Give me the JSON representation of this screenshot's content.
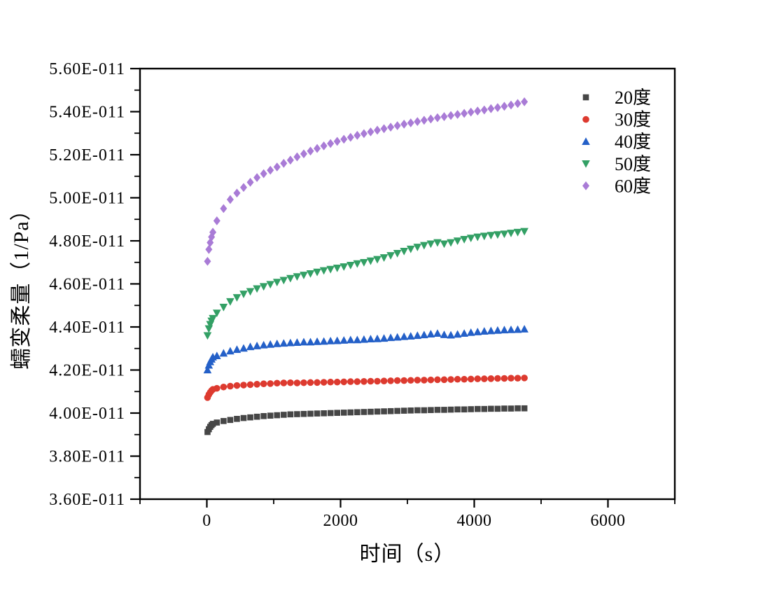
{
  "page": {
    "background": "#ffffff"
  },
  "chart_data": {
    "type": "scatter",
    "title": "",
    "xlabel": "时间（s）",
    "ylabel": "蠕变柔量（1/Pa）",
    "xlim": [
      -1000,
      7000
    ],
    "ylim_e11": [
      3.6,
      5.6
    ],
    "value_unit": "1/Pa",
    "value_scale_suffix": "E-011",
    "grid": false,
    "legend_position": "top-right-inside",
    "frame_color": "#000000",
    "x_major_ticks": [
      {
        "value": 0,
        "label": "0"
      },
      {
        "value": 2000,
        "label": "2000"
      },
      {
        "value": 4000,
        "label": "4000"
      },
      {
        "value": 6000,
        "label": "6000"
      }
    ],
    "x_minor_ticks": [
      -1000,
      1000,
      3000,
      5000,
      7000
    ],
    "y_major_ticks": [
      {
        "value_e11": 5.6,
        "label": "5.60E-011"
      },
      {
        "value_e11": 5.4,
        "label": "5.40E-011"
      },
      {
        "value_e11": 5.2,
        "label": "5.20E-011"
      },
      {
        "value_e11": 5.0,
        "label": "5.00E-011"
      },
      {
        "value_e11": 4.8,
        "label": "4.80E-011"
      },
      {
        "value_e11": 4.6,
        "label": "4.60E-011"
      },
      {
        "value_e11": 4.4,
        "label": "4.40E-011"
      },
      {
        "value_e11": 4.2,
        "label": "4.20E-011"
      },
      {
        "value_e11": 4.0,
        "label": "4.00E-011"
      },
      {
        "value_e11": 3.8,
        "label": "3.80E-011"
      },
      {
        "value_e11": 3.6,
        "label": "3.60E-011"
      }
    ],
    "y_minor_ticks_e11": [
      5.5,
      5.3,
      5.1,
      4.9,
      4.7,
      4.5,
      4.3,
      4.1,
      3.9,
      3.7
    ],
    "x": [
      10,
      30,
      50,
      70,
      90,
      150,
      250,
      350,
      450,
      550,
      650,
      750,
      850,
      950,
      1050,
      1150,
      1250,
      1350,
      1450,
      1550,
      1650,
      1750,
      1850,
      1950,
      2050,
      2150,
      2250,
      2350,
      2450,
      2550,
      2650,
      2750,
      2850,
      2950,
      3050,
      3150,
      3250,
      3350,
      3450,
      3550,
      3650,
      3750,
      3850,
      3950,
      4050,
      4150,
      4250,
      4350,
      4450,
      4550,
      4650,
      4750
    ],
    "series": [
      {
        "name": "20度",
        "marker": "square",
        "color": "#464646",
        "values_e11": [
          3.912,
          3.925,
          3.936,
          3.944,
          3.95,
          3.956,
          3.963,
          3.968,
          3.973,
          3.977,
          3.98,
          3.983,
          3.986,
          3.988,
          3.99,
          3.992,
          3.994,
          3.995,
          3.996,
          3.997,
          3.998,
          3.999,
          4.0,
          4.001,
          4.002,
          4.003,
          4.004,
          4.005,
          4.006,
          4.007,
          4.008,
          4.009,
          4.01,
          4.011,
          4.012,
          4.013,
          4.013,
          4.014,
          4.015,
          4.015,
          4.016,
          4.017,
          4.017,
          4.018,
          4.019,
          4.019,
          4.02,
          4.02,
          4.021,
          4.021,
          4.022,
          4.022
        ]
      },
      {
        "name": "30度",
        "marker": "circle",
        "color": "#dd3a2f",
        "values_e11": [
          4.072,
          4.086,
          4.096,
          4.104,
          4.11,
          4.115,
          4.121,
          4.125,
          4.128,
          4.13,
          4.132,
          4.134,
          4.136,
          4.137,
          4.139,
          4.14,
          4.141,
          4.14,
          4.141,
          4.142,
          4.142,
          4.143,
          4.144,
          4.144,
          4.145,
          4.146,
          4.146,
          4.147,
          4.148,
          4.148,
          4.149,
          4.15,
          4.151,
          4.151,
          4.152,
          4.153,
          4.153,
          4.154,
          4.155,
          4.155,
          4.156,
          4.157,
          4.157,
          4.158,
          4.159,
          4.159,
          4.16,
          4.161,
          4.161,
          4.162,
          4.162,
          4.163
        ]
      },
      {
        "name": "40度",
        "marker": "triangle-up",
        "color": "#2460c8",
        "values_e11": [
          4.2,
          4.222,
          4.238,
          4.25,
          4.26,
          4.266,
          4.278,
          4.288,
          4.295,
          4.301,
          4.308,
          4.312,
          4.316,
          4.319,
          4.322,
          4.324,
          4.326,
          4.328,
          4.33,
          4.33,
          4.332,
          4.333,
          4.335,
          4.336,
          4.338,
          4.34,
          4.34,
          4.342,
          4.344,
          4.345,
          4.347,
          4.35,
          4.352,
          4.355,
          4.357,
          4.36,
          4.363,
          4.367,
          4.37,
          4.364,
          4.362,
          4.366,
          4.37,
          4.374,
          4.377,
          4.38,
          4.382,
          4.384,
          4.386,
          4.387,
          4.388,
          4.39
        ]
      },
      {
        "name": "50度",
        "marker": "triangle-down",
        "color": "#33a065",
        "values_e11": [
          4.36,
          4.392,
          4.412,
          4.428,
          4.44,
          4.465,
          4.492,
          4.518,
          4.537,
          4.553,
          4.565,
          4.578,
          4.588,
          4.598,
          4.608,
          4.617,
          4.626,
          4.634,
          4.641,
          4.648,
          4.655,
          4.662,
          4.668,
          4.674,
          4.68,
          4.687,
          4.694,
          4.7,
          4.707,
          4.714,
          4.722,
          4.732,
          4.742,
          4.752,
          4.762,
          4.771,
          4.779,
          4.786,
          4.792,
          4.786,
          4.792,
          4.8,
          4.807,
          4.813,
          4.818,
          4.822,
          4.826,
          4.829,
          4.832,
          4.836,
          4.84,
          4.844
        ]
      },
      {
        "name": "60度",
        "marker": "diamond",
        "color": "#a97bd6",
        "values_e11": [
          4.705,
          4.76,
          4.792,
          4.818,
          4.84,
          4.893,
          4.95,
          4.992,
          5.022,
          5.048,
          5.072,
          5.094,
          5.112,
          5.128,
          5.143,
          5.16,
          5.175,
          5.19,
          5.204,
          5.217,
          5.229,
          5.241,
          5.252,
          5.262,
          5.272,
          5.281,
          5.29,
          5.298,
          5.306,
          5.314,
          5.321,
          5.328,
          5.335,
          5.342,
          5.348,
          5.354,
          5.36,
          5.366,
          5.372,
          5.377,
          5.382,
          5.387,
          5.392,
          5.398,
          5.403,
          5.408,
          5.414,
          5.419,
          5.425,
          5.431,
          5.438,
          5.446
        ]
      }
    ]
  }
}
